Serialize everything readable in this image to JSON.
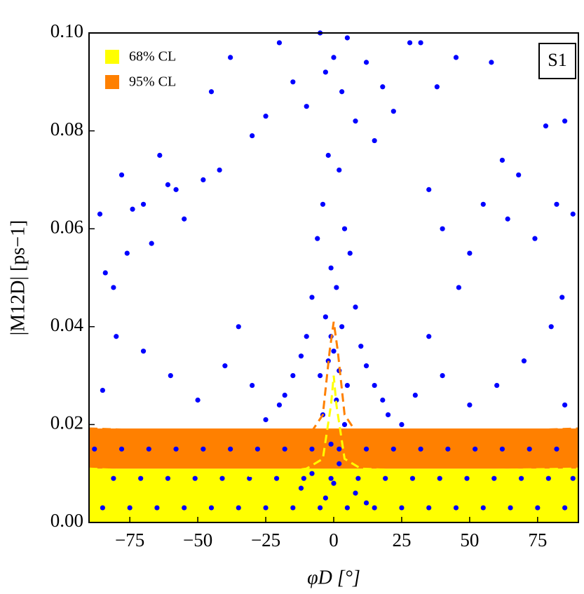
{
  "chart_data": {
    "type": "scatter",
    "x_label": "φD [°]",
    "y_label": "|M12D| [ps−1]",
    "annotation": "S1",
    "xlim": [
      -90,
      90
    ],
    "ylim": [
      0,
      0.1
    ],
    "xticks": [
      {
        "value": -75,
        "label": "−75"
      },
      {
        "value": -50,
        "label": "−50"
      },
      {
        "value": -25,
        "label": "−25"
      },
      0,
      25,
      50,
      75
    ],
    "yticks": [
      {
        "value": 0,
        "label": "0.00"
      },
      {
        "value": 0.02,
        "label": "0.02"
      },
      {
        "value": 0.04,
        "label": "0.04"
      },
      {
        "value": 0.06,
        "label": "0.06"
      },
      {
        "value": 0.08,
        "label": "0.08"
      },
      {
        "value": 0.1,
        "label": "0.10"
      }
    ],
    "bands": [
      {
        "name": "68% CL",
        "color": "#ffff00",
        "range": [
          0,
          0.011
        ]
      },
      {
        "name": "95% CL",
        "color": "#ff8000",
        "range": [
          0.011,
          0.0192
        ]
      }
    ],
    "contours": [
      {
        "color": "#ffff00",
        "x": [
          -90,
          -30,
          -10,
          -4,
          -1,
          0,
          1,
          4,
          10,
          30,
          90
        ],
        "values": [
          0.011,
          0.0095,
          0.011,
          0.013,
          0.024,
          0.03,
          0.024,
          0.013,
          0.011,
          0.0105,
          0.011
        ]
      },
      {
        "color": "#ff8000",
        "x": [
          -90,
          -25,
          -10,
          -4,
          -1.5,
          0,
          1.5,
          4,
          10,
          25,
          90
        ],
        "values": [
          0.0192,
          0.018,
          0.017,
          0.022,
          0.035,
          0.041,
          0.035,
          0.022,
          0.017,
          0.018,
          0.0192
        ]
      }
    ],
    "series": [
      {
        "color": "#0000ff",
        "x": [
          -86,
          -84,
          -81,
          -78,
          -76,
          -74,
          -70,
          -67,
          -64,
          -61,
          -58,
          -55,
          -48,
          -45,
          -42,
          -38,
          -30,
          -25,
          -20,
          -15,
          -10,
          -5,
          -3,
          0,
          3,
          5,
          8,
          12,
          15,
          18,
          22,
          28,
          32,
          38,
          45,
          58,
          62,
          68,
          78,
          85,
          88,
          82,
          74,
          84,
          64,
          55,
          50,
          46,
          40,
          35,
          -2,
          2,
          -4,
          4,
          -6,
          6,
          -1,
          1,
          -8,
          8,
          -3,
          3,
          -10,
          10,
          -12,
          12,
          -15,
          15,
          -18,
          18,
          -20,
          20,
          -5,
          5,
          -2,
          2,
          -25,
          25,
          -30,
          30,
          -35,
          35,
          -40,
          40,
          -50,
          50,
          -60,
          60,
          -70,
          70,
          -80,
          80,
          -85,
          85,
          -85,
          -81,
          -88,
          -75,
          -71,
          -78,
          -65,
          -61,
          -68,
          -55,
          -51,
          -58,
          -45,
          -41,
          -48,
          -35,
          -31,
          -38,
          -25,
          -21,
          -28,
          -15,
          -11,
          -18,
          -5,
          -1,
          -8,
          5,
          9,
          2,
          15,
          19,
          12,
          25,
          29,
          22,
          35,
          39,
          32,
          45,
          49,
          42,
          55,
          59,
          52,
          65,
          69,
          62,
          75,
          79,
          72,
          85,
          88,
          82,
          -3,
          0,
          2,
          -1,
          4,
          -4,
          1,
          0,
          -1,
          8,
          -8,
          12,
          -12
        ],
        "values": [
          0.063,
          0.051,
          0.048,
          0.071,
          0.055,
          0.064,
          0.065,
          0.057,
          0.075,
          0.069,
          0.068,
          0.062,
          0.07,
          0.088,
          0.072,
          0.095,
          0.079,
          0.083,
          0.098,
          0.09,
          0.085,
          0.1,
          0.092,
          0.095,
          0.088,
          0.099,
          0.082,
          0.094,
          0.078,
          0.089,
          0.084,
          0.098,
          0.098,
          0.089,
          0.095,
          0.094,
          0.074,
          0.071,
          0.081,
          0.082,
          0.063,
          0.065,
          0.058,
          0.046,
          0.062,
          0.065,
          0.055,
          0.048,
          0.06,
          0.068,
          0.075,
          0.072,
          0.065,
          0.06,
          0.058,
          0.055,
          0.052,
          0.048,
          0.046,
          0.044,
          0.042,
          0.04,
          0.038,
          0.036,
          0.034,
          0.032,
          0.03,
          0.028,
          0.026,
          0.025,
          0.024,
          0.022,
          0.03,
          0.028,
          0.033,
          0.031,
          0.021,
          0.02,
          0.028,
          0.026,
          0.04,
          0.038,
          0.032,
          0.03,
          0.025,
          0.024,
          0.03,
          0.028,
          0.035,
          0.033,
          0.038,
          0.04,
          0.027,
          0.024,
          0.003,
          0.009,
          0.015,
          0.003,
          0.009,
          0.015,
          0.003,
          0.009,
          0.015,
          0.003,
          0.009,
          0.015,
          0.003,
          0.009,
          0.015,
          0.003,
          0.009,
          0.015,
          0.003,
          0.009,
          0.015,
          0.003,
          0.009,
          0.015,
          0.003,
          0.009,
          0.015,
          0.003,
          0.009,
          0.015,
          0.003,
          0.009,
          0.015,
          0.003,
          0.009,
          0.015,
          0.003,
          0.009,
          0.015,
          0.003,
          0.009,
          0.015,
          0.003,
          0.009,
          0.015,
          0.003,
          0.009,
          0.015,
          0.003,
          0.009,
          0.015,
          0.003,
          0.009,
          0.015,
          0.005,
          0.008,
          0.012,
          0.016,
          0.02,
          0.022,
          0.025,
          0.035,
          0.038,
          0.006,
          0.01,
          0.004,
          0.007
        ]
      }
    ]
  }
}
